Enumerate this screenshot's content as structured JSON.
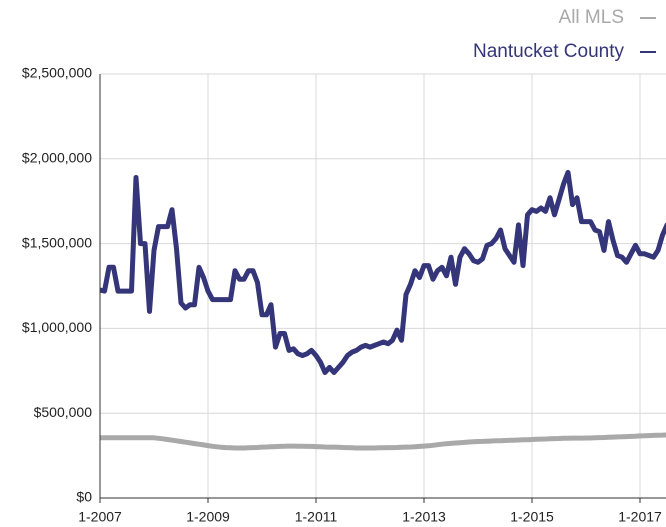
{
  "chart_data": {
    "type": "line",
    "categories": [
      "1-2007",
      null,
      null,
      null,
      null,
      null,
      null,
      null,
      null,
      null,
      null,
      null,
      null,
      null,
      null,
      null,
      null,
      null,
      null,
      null,
      null,
      null,
      null,
      null,
      "1-2009",
      null,
      null,
      null,
      null,
      null,
      null,
      null,
      null,
      null,
      null,
      null,
      null,
      null,
      null,
      null,
      null,
      null,
      null,
      null,
      null,
      null,
      null,
      null,
      "1-2011",
      null,
      null,
      null,
      null,
      null,
      null,
      null,
      null,
      null,
      null,
      null,
      null,
      null,
      null,
      null,
      null,
      null,
      null,
      null,
      null,
      null,
      null,
      null,
      "1-2013",
      null,
      null,
      null,
      null,
      null,
      null,
      null,
      null,
      null,
      null,
      null,
      null,
      null,
      null,
      null,
      null,
      null,
      null,
      null,
      null,
      null,
      null,
      null,
      "1-2015",
      null,
      null,
      null,
      null,
      null,
      null,
      null,
      null,
      null,
      null,
      null,
      null,
      null,
      null,
      null,
      null,
      null,
      null,
      null,
      null,
      null,
      null,
      null,
      "1-2017",
      null,
      null,
      null,
      null,
      null,
      null
    ],
    "series": [
      {
        "name": "All MLS",
        "color": "#a9a9a9",
        "values": [
          355000,
          355000,
          355000,
          355000,
          355000,
          355000,
          355000,
          355000,
          355000,
          355000,
          355000,
          355000,
          355000,
          352000,
          349000,
          345000,
          341000,
          337000,
          333000,
          329000,
          325000,
          321000,
          317000,
          313000,
          309000,
          305000,
          302000,
          299000,
          297000,
          296000,
          295000,
          295000,
          295000,
          296000,
          297000,
          298000,
          300000,
          301000,
          302000,
          303000,
          304000,
          305000,
          306000,
          306000,
          305000,
          305000,
          304000,
          304000,
          303000,
          302000,
          301000,
          300000,
          300000,
          299000,
          298000,
          297000,
          296000,
          295000,
          295000,
          295000,
          295000,
          295000,
          296000,
          296000,
          297000,
          297000,
          298000,
          299000,
          300000,
          301000,
          302000,
          304000,
          306000,
          308000,
          311000,
          314000,
          317000,
          320000,
          322000,
          324000,
          326000,
          328000,
          330000,
          332000,
          333000,
          334000,
          335000,
          336000,
          337000,
          338000,
          339000,
          340000,
          341000,
          342000,
          343000,
          344000,
          345000,
          346000,
          347000,
          348000,
          349000,
          350000,
          351000,
          352000,
          352000,
          353000,
          353000,
          353000,
          354000,
          354000,
          355000,
          356000,
          357000,
          358000,
          359000,
          360000,
          361000,
          362000,
          363000,
          364000,
          366000,
          367000,
          368000,
          369000,
          370000,
          371000,
          372000
        ]
      },
      {
        "name": "Nantucket County",
        "color": "#35357a",
        "values": [
          1226000,
          1220000,
          1360000,
          1360000,
          1220000,
          1220000,
          1220000,
          1220000,
          1890000,
          1500000,
          1500000,
          1100000,
          1460000,
          1600000,
          1600000,
          1600000,
          1700000,
          1470000,
          1150000,
          1120000,
          1140000,
          1140000,
          1360000,
          1300000,
          1220000,
          1170000,
          1170000,
          1170000,
          1170000,
          1170000,
          1340000,
          1290000,
          1290000,
          1340000,
          1340000,
          1270000,
          1080000,
          1080000,
          1140000,
          890000,
          970000,
          970000,
          870000,
          880000,
          850000,
          840000,
          850000,
          870000,
          840000,
          800000,
          740000,
          770000,
          740000,
          770000,
          800000,
          840000,
          860000,
          870000,
          890000,
          900000,
          890000,
          900000,
          910000,
          920000,
          910000,
          930000,
          990000,
          930000,
          1200000,
          1260000,
          1340000,
          1300000,
          1370000,
          1370000,
          1290000,
          1340000,
          1360000,
          1310000,
          1420000,
          1260000,
          1420000,
          1470000,
          1440000,
          1400000,
          1390000,
          1410000,
          1490000,
          1500000,
          1530000,
          1580000,
          1470000,
          1430000,
          1390000,
          1610000,
          1370000,
          1670000,
          1700000,
          1690000,
          1710000,
          1690000,
          1770000,
          1670000,
          1760000,
          1850000,
          1920000,
          1730000,
          1770000,
          1630000,
          1630000,
          1630000,
          1580000,
          1570000,
          1460000,
          1630000,
          1520000,
          1430000,
          1420000,
          1390000,
          1440000,
          1490000,
          1440000,
          1440000,
          1430000,
          1420000,
          1460000,
          1550000,
          1610000
        ]
      }
    ],
    "ylim": [
      0,
      2500000
    ],
    "yticks": [
      {
        "value": 0,
        "label": "$0"
      },
      {
        "value": 500000,
        "label": "$500,000"
      },
      {
        "value": 1000000,
        "label": "$1,000,000"
      },
      {
        "value": 1500000,
        "label": "$1,500,000"
      },
      {
        "value": 2000000,
        "label": "$2,000,000"
      },
      {
        "value": 2500000,
        "label": "$2,500,000"
      }
    ],
    "grid": true,
    "legend": "top-right"
  }
}
